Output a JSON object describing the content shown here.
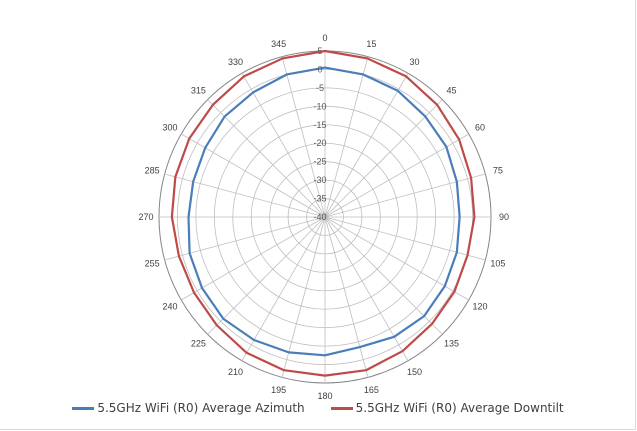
{
  "chart_data": {
    "type": "radar",
    "angle_labels": [
      "0",
      "15",
      "30",
      "45",
      "60",
      "75",
      "90",
      "105",
      "120",
      "135",
      "150",
      "165",
      "180",
      "195",
      "210",
      "225",
      "240",
      "255",
      "270",
      "285",
      "300",
      "315",
      "330",
      "345"
    ],
    "radial_labels": [
      "5",
      "0",
      "-5",
      "-10",
      "-15",
      "-20",
      "-25",
      "-30",
      "-35",
      "-40"
    ],
    "rlim": [
      -40,
      5
    ],
    "grid": true,
    "legend_position": "bottom",
    "series": [
      {
        "name": "5.5GHz WiFi (R0) Average Azimuth",
        "color": "#4a7ebb",
        "values": [
          0.5,
          0,
          -0.5,
          -1.5,
          -2,
          -3,
          -3.5,
          -3,
          -2.5,
          -2,
          -2.5,
          -3.5,
          -2.5,
          -2,
          -1.5,
          -1,
          -1.5,
          -2,
          -3,
          -3,
          -2.5,
          -1.5,
          -1,
          0
        ]
      },
      {
        "name": "5.5GHz WiFi (R0) Average Downtilt",
        "color": "#be4b48",
        "values": [
          5,
          4.5,
          4,
          3,
          2,
          1,
          0.5,
          0,
          0.5,
          1,
          2,
          3,
          3,
          3,
          2.5,
          1.5,
          1,
          1,
          1.5,
          2,
          2.5,
          3,
          4,
          4.5
        ]
      }
    ]
  }
}
